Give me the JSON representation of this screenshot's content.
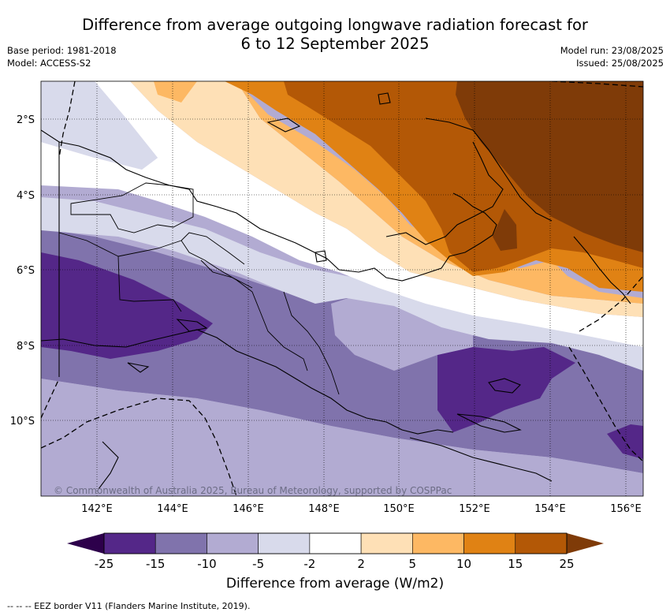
{
  "title_line1": "Difference from average outgoing longwave radiation forecast for",
  "title_line2": "6 to 12 September 2025",
  "meta_left": [
    "Base period: 1981-2018",
    "Model: ACCESS-S2"
  ],
  "meta_right": [
    "Model run: 23/08/2025",
    "Issued: 25/08/2025"
  ],
  "lat_ticks": [
    "2°S",
    "4°S",
    "6°S",
    "8°S",
    "10°S"
  ],
  "lon_ticks": [
    "142°E",
    "144°E",
    "146°E",
    "148°E",
    "150°E",
    "152°E",
    "154°E",
    "156°E"
  ],
  "copyright": "© Commonwealth of Australia 2025, Bureau of Meteorology, supported by COSPPac",
  "colorbar": {
    "title": "Difference from average (W/m2)",
    "labels": [
      "-25",
      "-15",
      "-10",
      "-5",
      "-2",
      "2",
      "5",
      "10",
      "15",
      "25"
    ],
    "colors": [
      "#2d004b",
      "#542788",
      "#8073ac",
      "#b2abd2",
      "#d8daeb",
      "#ffffff",
      "#fee0b6",
      "#fdb863",
      "#e08214",
      "#b35806",
      "#7f3b08"
    ]
  },
  "footer": "--  --  -- EEZ border V11 (Flanders Marine Institute, 2019)."
}
